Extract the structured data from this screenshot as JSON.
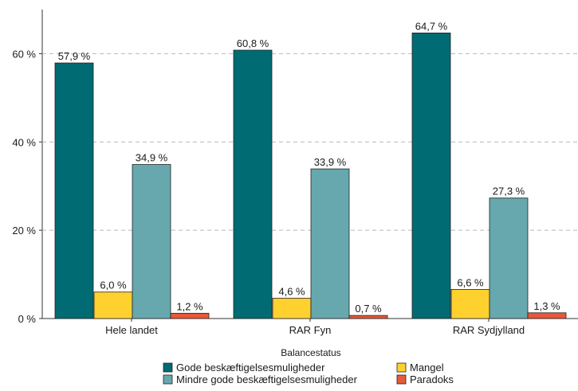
{
  "chart_data": {
    "type": "bar",
    "categories": [
      "Hele landet",
      "RAR Fyn",
      "RAR Sydjylland"
    ],
    "series": [
      {
        "name": "Gode beskæftigelsesmuligheder",
        "color": "#006b73",
        "values": [
          57.9,
          60.8,
          64.7
        ],
        "labels": [
          "57,9 %",
          "60,8 %",
          "64,7 %"
        ]
      },
      {
        "name": "Mangel",
        "color": "#ffd12e",
        "values": [
          6.0,
          4.6,
          6.6
        ],
        "labels": [
          "6,0 %",
          "4,6 %",
          "6,6 %"
        ]
      },
      {
        "name": "Mindre gode beskæftigelsesmuligheder",
        "color": "#66a8ae",
        "values": [
          34.9,
          33.9,
          27.3
        ],
        "labels": [
          "34,9 %",
          "33,9 %",
          "27,3 %"
        ]
      },
      {
        "name": "Paradoks",
        "color": "#e8583a",
        "values": [
          1.2,
          0.7,
          1.3
        ],
        "labels": [
          "1,2 %",
          "0,7 %",
          "1,3 %"
        ]
      }
    ],
    "yticks": [
      0,
      20,
      40,
      60
    ],
    "ytick_labels": [
      "0 %",
      "20 %",
      "40 %",
      "60 %"
    ],
    "ylim": [
      0,
      70
    ],
    "legend_title": "Balancestatus",
    "legend_position": "bottom",
    "grid": "horizontal dashed"
  }
}
